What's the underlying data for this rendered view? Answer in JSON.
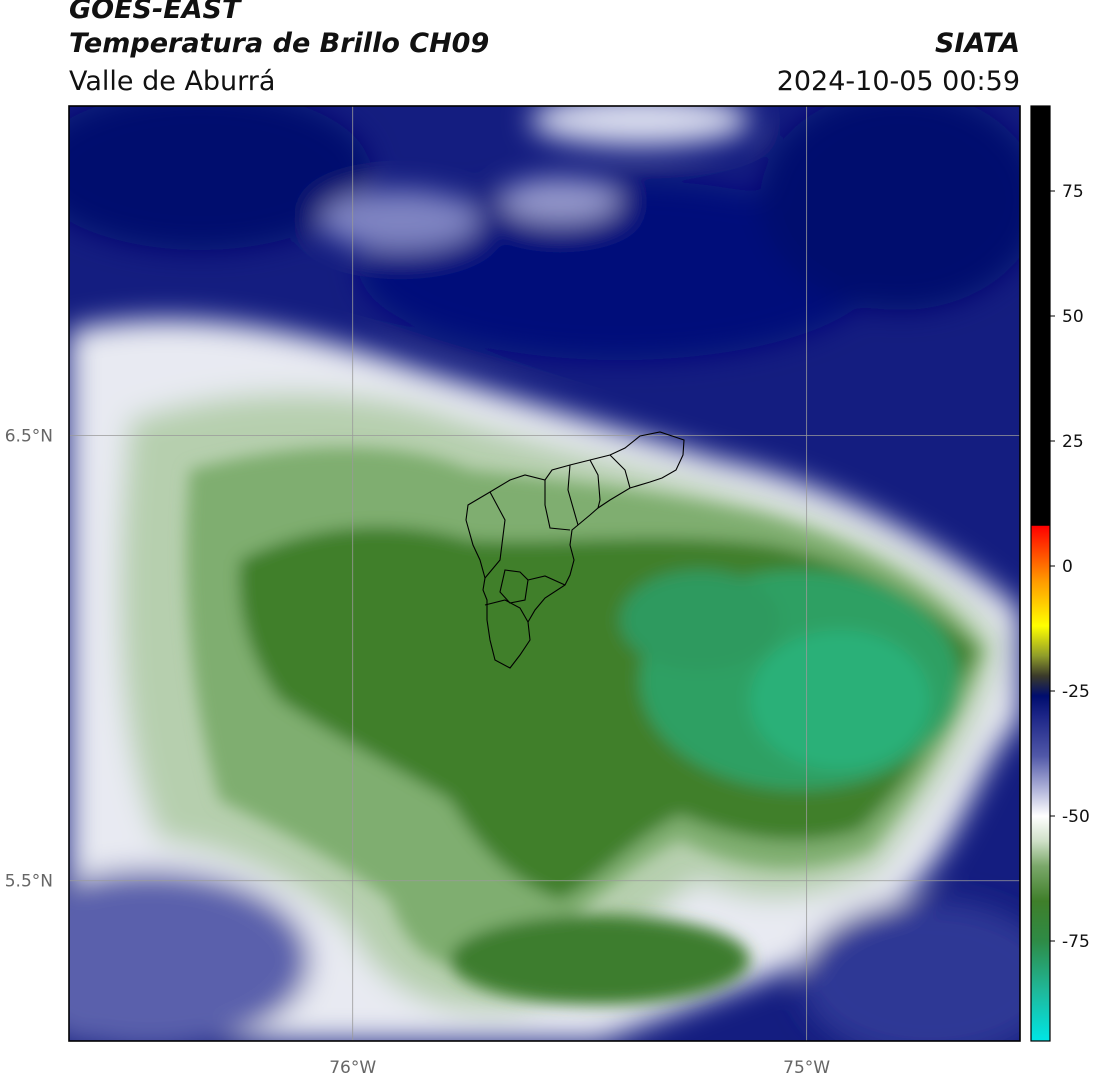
{
  "header": {
    "satellite": "GOES-EAST",
    "product": "Temperatura de Brillo CH09",
    "region": "Valle de Aburrá",
    "organization": "SIATA",
    "datetime": "2024-10-05 00:59"
  },
  "axes": {
    "lat_labels": [
      {
        "value": 6.5,
        "text": "6.5°N"
      },
      {
        "value": 5.5,
        "text": "5.5°N"
      }
    ],
    "lon_labels": [
      {
        "value": -76.0,
        "text": "76°W"
      },
      {
        "value": -75.0,
        "text": "75°W"
      }
    ],
    "lon_range": [
      -76.625,
      -74.53
    ],
    "lat_range": [
      5.14,
      7.24
    ]
  },
  "colorbar": {
    "ticks": [
      75,
      50,
      25,
      0,
      -25,
      -50,
      -75
    ],
    "range": [
      -95,
      92
    ],
    "stops": [
      {
        "v": -95,
        "c": "#ffffff"
      },
      {
        "v": -94.9,
        "c": "#00e5e5"
      },
      {
        "v": -85,
        "c": "#1fb89a"
      },
      {
        "v": -75,
        "c": "#2e8b46"
      },
      {
        "v": -67,
        "c": "#3f7f2a"
      },
      {
        "v": -60,
        "c": "#7ba86a"
      },
      {
        "v": -55,
        "c": "#cfe0c8"
      },
      {
        "v": -50,
        "c": "#ffffff"
      },
      {
        "v": -45,
        "c": "#b5b8dc"
      },
      {
        "v": -38,
        "c": "#5158a8"
      },
      {
        "v": -30,
        "c": "#1c2587"
      },
      {
        "v": -26,
        "c": "#000d6e"
      },
      {
        "v": -22,
        "c": "#3a3a2a"
      },
      {
        "v": -18,
        "c": "#8f9c2a"
      },
      {
        "v": -12,
        "c": "#ffff00"
      },
      {
        "v": -3,
        "c": "#ff9a00"
      },
      {
        "v": 8,
        "c": "#ff0000"
      },
      {
        "v": 8.1,
        "c": "#000000"
      },
      {
        "v": 92,
        "c": "#000000"
      }
    ]
  },
  "colors": {
    "cold_cloud": "#2e9b62",
    "cloud_green": "#3f7f2a",
    "edge": "#ffffff",
    "clear_sky": "#0d1777",
    "boundary": "#000000",
    "grid": "#9a9a9a"
  }
}
